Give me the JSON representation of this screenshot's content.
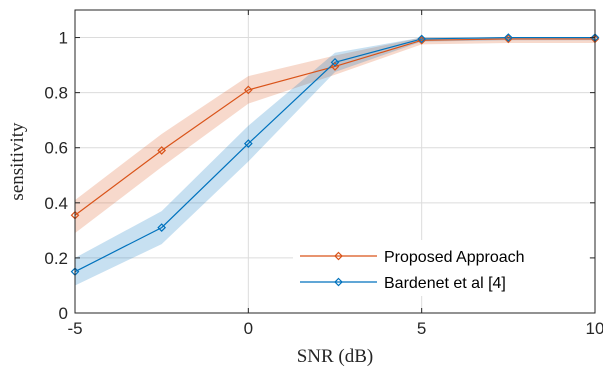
{
  "chart_data": {
    "type": "line",
    "xlabel": "SNR (dB)",
    "ylabel": "sensitivity",
    "xlim": [
      -5,
      10
    ],
    "ylim": [
      0,
      1.1
    ],
    "xticks": [
      -5,
      0,
      5,
      10
    ],
    "yticks": [
      0,
      0.2,
      0.4,
      0.6,
      0.8,
      1
    ],
    "xtick_labels": [
      "-5",
      "0",
      "5",
      "10"
    ],
    "ytick_labels": [
      "0",
      "0.2",
      "0.4",
      "0.6",
      "0.8",
      "1"
    ],
    "grid": true,
    "legend_position": "bottom-right",
    "series": [
      {
        "name": "Proposed Approach",
        "color": "#D95319",
        "marker": "diamond",
        "x": [
          -5,
          -2.5,
          0,
          2.5,
          5,
          7.5,
          10
        ],
        "y": [
          0.355,
          0.59,
          0.81,
          0.895,
          0.99,
          0.995,
          0.995
        ],
        "lower": [
          0.29,
          0.53,
          0.76,
          0.865,
          0.975,
          0.98,
          0.98
        ],
        "upper": [
          0.41,
          0.65,
          0.86,
          0.935,
          1.0,
          1.0,
          1.0
        ]
      },
      {
        "name": "Bardenet et al [4]",
        "color": "#0072BD",
        "marker": "diamond",
        "x": [
          -5,
          -2.5,
          0,
          2.5,
          5,
          7.5,
          10
        ],
        "y": [
          0.15,
          0.31,
          0.615,
          0.91,
          0.995,
          1.0,
          1.0
        ],
        "lower": [
          0.1,
          0.25,
          0.55,
          0.875,
          0.985,
          0.99,
          0.99
        ],
        "upper": [
          0.2,
          0.37,
          0.68,
          0.945,
          1.0,
          1.0,
          1.0
        ]
      }
    ]
  }
}
